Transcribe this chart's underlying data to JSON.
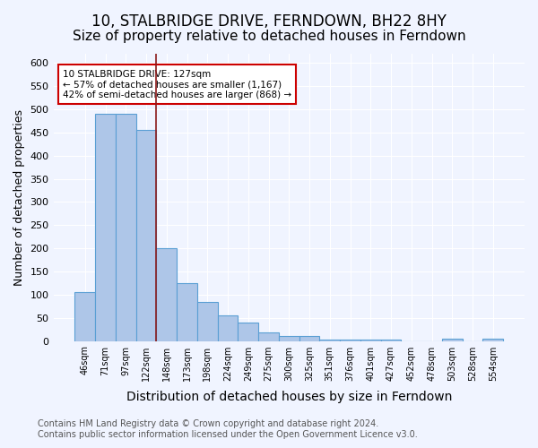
{
  "title": "10, STALBRIDGE DRIVE, FERNDOWN, BH22 8HY",
  "subtitle": "Size of property relative to detached houses in Ferndown",
  "xlabel": "Distribution of detached houses by size in Ferndown",
  "ylabel": "Number of detached properties",
  "bar_values": [
    105,
    490,
    490,
    455,
    200,
    125,
    85,
    55,
    40,
    18,
    10,
    10,
    3,
    3,
    3,
    3,
    0,
    0,
    5,
    0,
    5
  ],
  "bar_labels": [
    "46sqm",
    "71sqm",
    "97sqm",
    "122sqm",
    "148sqm",
    "173sqm",
    "198sqm",
    "224sqm",
    "249sqm",
    "275sqm",
    "300sqm",
    "325sqm",
    "351sqm",
    "376sqm",
    "401sqm",
    "427sqm",
    "452sqm",
    "478sqm",
    "503sqm",
    "528sqm",
    "554sqm"
  ],
  "bar_color": "#aec6e8",
  "bar_edgecolor": "#5a9fd4",
  "bar_linewidth": 0.8,
  "vline_x": 3.5,
  "vline_color": "#8b1a1a",
  "annotation_text": "10 STALBRIDGE DRIVE: 127sqm\n← 57% of detached houses are smaller (1,167)\n42% of semi-detached houses are larger (868) →",
  "annotation_box_edgecolor": "#cc0000",
  "annotation_box_facecolor": "#ffffff",
  "ylim": [
    0,
    620
  ],
  "yticks": [
    0,
    50,
    100,
    150,
    200,
    250,
    300,
    350,
    400,
    450,
    500,
    550,
    600
  ],
  "footnote": "Contains HM Land Registry data © Crown copyright and database right 2024.\nContains public sector information licensed under the Open Government Licence v3.0.",
  "background_color": "#f0f4ff",
  "title_fontsize": 12,
  "subtitle_fontsize": 11,
  "xlabel_fontsize": 10,
  "ylabel_fontsize": 9,
  "footnote_fontsize": 7
}
